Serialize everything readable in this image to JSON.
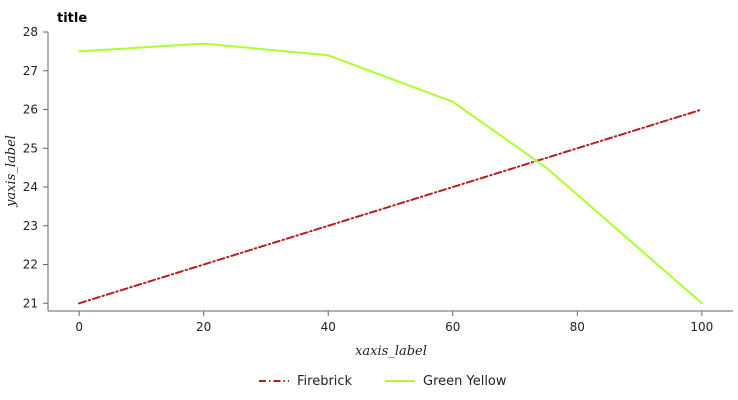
{
  "chart_data": {
    "type": "line",
    "title": "title",
    "xlabel": "xaxis_label",
    "ylabel": "yaxis_label",
    "xlim": [
      -5,
      105
    ],
    "ylim": [
      20.8,
      28
    ],
    "xticks": [
      0,
      20,
      40,
      60,
      80,
      100
    ],
    "yticks": [
      21,
      22,
      23,
      24,
      25,
      26,
      27,
      28
    ],
    "grid": false,
    "legend": "bottom-center",
    "series": [
      {
        "name": "Firebrick",
        "color": "#b22222",
        "style": "dash-dot",
        "x": [
          0,
          100
        ],
        "y": [
          21.0,
          26.0
        ]
      },
      {
        "name": "Green Yellow",
        "color": "#adff2f",
        "style": "solid",
        "x": [
          0,
          20,
          40,
          60,
          75,
          100
        ],
        "y": [
          27.5,
          27.7,
          27.4,
          26.2,
          24.5,
          21.0
        ]
      }
    ]
  }
}
